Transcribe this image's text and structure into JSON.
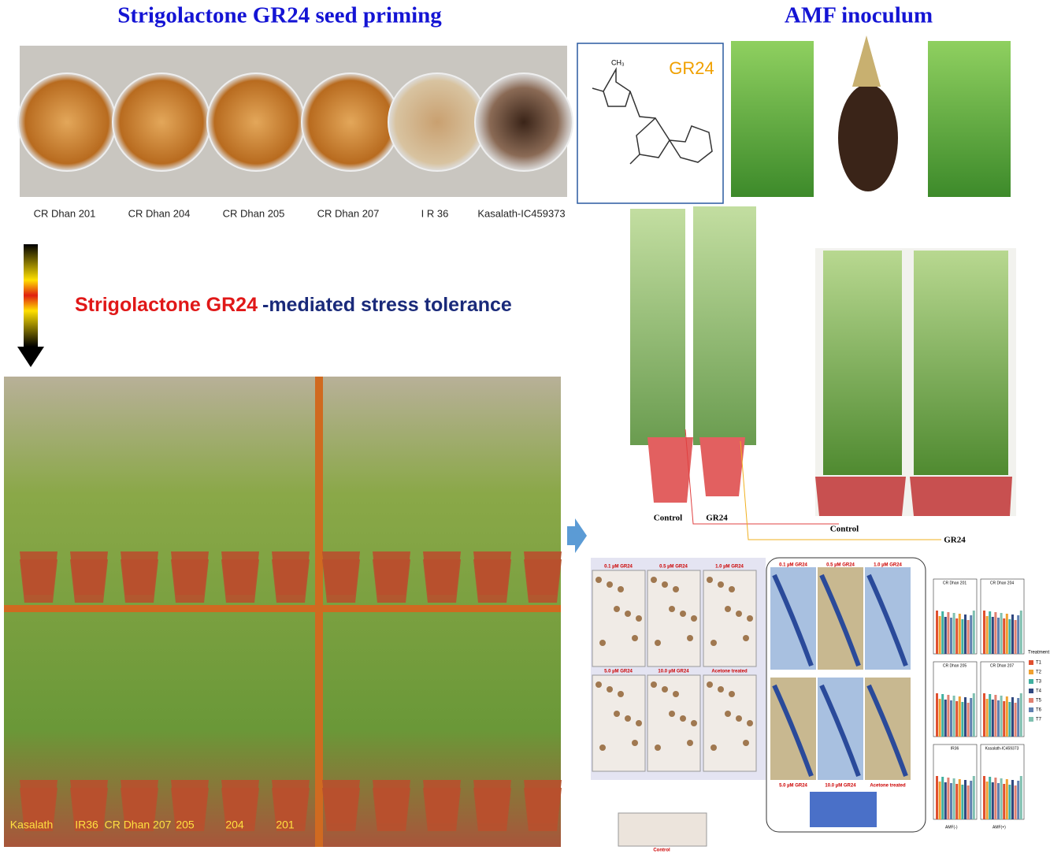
{
  "titles": {
    "seed_priming": "Strigolactone GR24 seed priming",
    "amf": "AMF inoculum"
  },
  "seed_labels": [
    "CR Dhan 201",
    "CR Dhan 204",
    "CR Dhan 205",
    "CR Dhan 207",
    "I R 36",
    "Kasalath-IC459373"
  ],
  "molecule": {
    "label": "GR24",
    "methyl": "CH₃"
  },
  "stress": {
    "part1": "Strigolactone GR24",
    "part2": "-mediated stress tolerance"
  },
  "field_labels": [
    "Kasalath",
    "IR36",
    "CR Dhan 207",
    "205",
    "204",
    "201"
  ],
  "pot_labels": [
    "Control",
    "GR24",
    "Control",
    "GR24"
  ],
  "spore_labels": [
    "0.1 µM GR24",
    "0.5 µM GR24",
    "1.0 µM GR24",
    "5.0 µM GR24",
    "10.0 µM GR24",
    "Acetone treated",
    "Control"
  ],
  "root_labels": [
    "0.1 µM GR24",
    "0.5 µM GR24",
    "1.0 µM GR24",
    "5.0 µM GR24",
    "10.0 µM GR24",
    "Acetone treated"
  ],
  "mini_chart": {
    "panels": [
      "CR Dhan 201",
      "CR Dhan 204",
      "CR Dhan 205",
      "CR Dhan 207",
      "IR36",
      "Kasalath-IC459373"
    ],
    "legend_title": "Treatment",
    "legend": [
      "T1",
      "T2",
      "T3",
      "T4",
      "T5",
      "T6",
      "T7"
    ],
    "x_labels": [
      "AMF(-)",
      "AMF(+)"
    ]
  }
}
